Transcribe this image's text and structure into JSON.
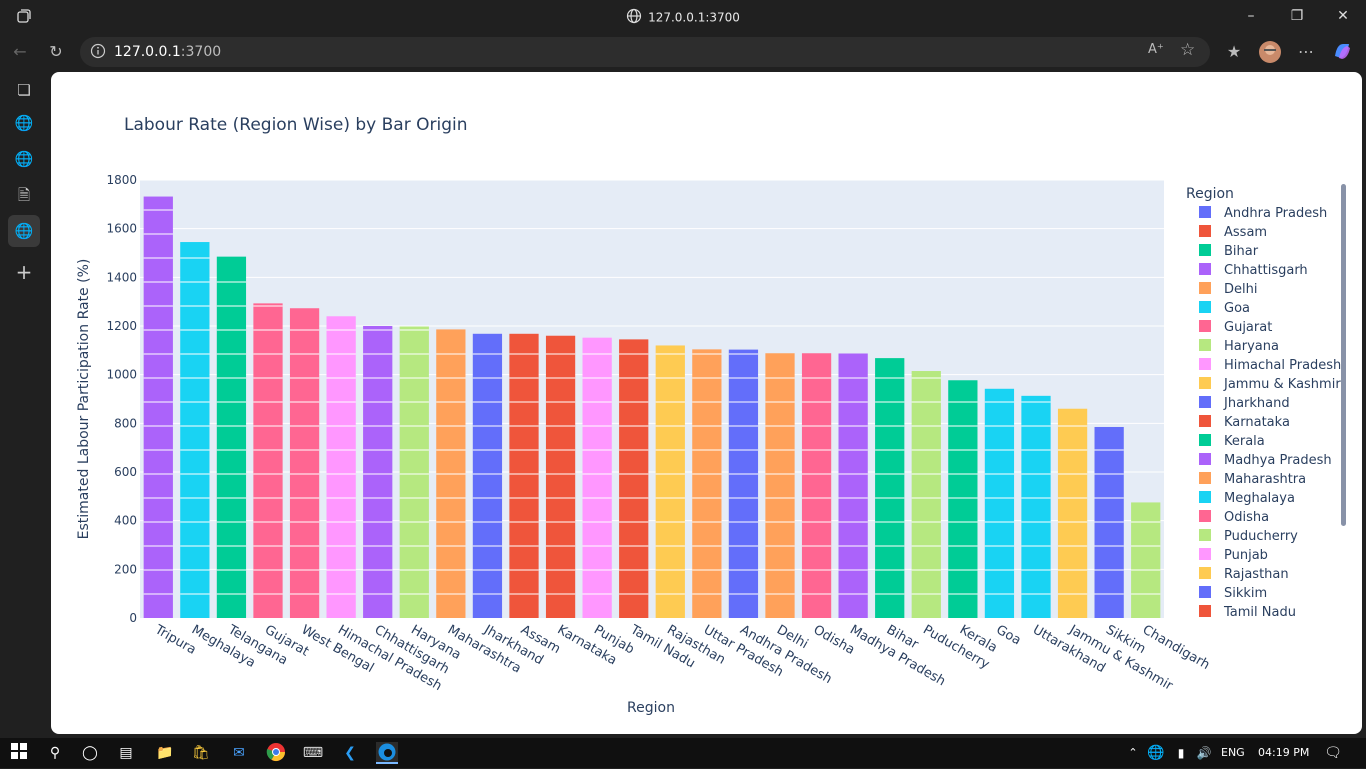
{
  "window": {
    "title": "127.0.0.1:3700"
  },
  "address_bar": {
    "host": "127.0.0.1",
    "port": ":3700"
  },
  "taskbar": {
    "lang": "ENG",
    "time": "04:19 PM"
  },
  "chart_data": {
    "type": "bar",
    "title": "Labour Rate (Region Wise) by Bar Origin",
    "xlabel": "Region",
    "ylabel": "Estimated Labour Participation Rate (%)",
    "ylim": [
      0,
      1800
    ],
    "yticks": [
      0,
      200,
      400,
      600,
      800,
      1000,
      1200,
      1400,
      1600,
      1800
    ],
    "legend_title": "Region",
    "legend_position": "right",
    "categories": [
      "Tripura",
      "Meghalaya",
      "Telangana",
      "Gujarat",
      "West Bengal",
      "Himachal Pradesh",
      "Chhattisgarh",
      "Haryana",
      "Maharashtra",
      "Jharkhand",
      "Assam",
      "Karnataka",
      "Punjab",
      "Tamil Nadu",
      "Rajasthan",
      "Uttar Pradesh",
      "Andhra Pradesh",
      "Delhi",
      "Odisha",
      "Madhya Pradesh",
      "Bihar",
      "Puducherry",
      "Kerala",
      "Goa",
      "Uttarakhand",
      "Jammu & Kashmir",
      "Sikkim",
      "Chandigarh"
    ],
    "values": [
      1732,
      1545,
      1485,
      1293,
      1273,
      1240,
      1200,
      1198,
      1186,
      1168,
      1168,
      1160,
      1152,
      1145,
      1120,
      1104,
      1103,
      1088,
      1088,
      1087,
      1068,
      1015,
      977,
      942,
      913,
      860,
      785,
      475
    ],
    "colors": [
      "#AB63FA",
      "#19D3F3",
      "#00CC96",
      "#FF6692",
      "#FF6692",
      "#FF97FF",
      "#AB63FA",
      "#B6E880",
      "#FFA15A",
      "#636EFA",
      "#EF553B",
      "#EF553B",
      "#FF97FF",
      "#EF553B",
      "#FECB52",
      "#FFA15A",
      "#636EFA",
      "#FFA15A",
      "#FF6692",
      "#AB63FA",
      "#00CC96",
      "#B6E880",
      "#00CC96",
      "#19D3F3",
      "#19D3F3",
      "#FECB52",
      "#636EFA",
      "#B6E880"
    ],
    "legend": [
      {
        "name": "Andhra Pradesh",
        "color": "#636EFA"
      },
      {
        "name": "Assam",
        "color": "#EF553B"
      },
      {
        "name": "Bihar",
        "color": "#00CC96"
      },
      {
        "name": "Chhattisgarh",
        "color": "#AB63FA"
      },
      {
        "name": "Delhi",
        "color": "#FFA15A"
      },
      {
        "name": "Goa",
        "color": "#19D3F3"
      },
      {
        "name": "Gujarat",
        "color": "#FF6692"
      },
      {
        "name": "Haryana",
        "color": "#B6E880"
      },
      {
        "name": "Himachal Pradesh",
        "color": "#FF97FF"
      },
      {
        "name": "Jammu & Kashmir",
        "color": "#FECB52"
      },
      {
        "name": "Jharkhand",
        "color": "#636EFA"
      },
      {
        "name": "Karnataka",
        "color": "#EF553B"
      },
      {
        "name": "Kerala",
        "color": "#00CC96"
      },
      {
        "name": "Madhya Pradesh",
        "color": "#AB63FA"
      },
      {
        "name": "Maharashtra",
        "color": "#FFA15A"
      },
      {
        "name": "Meghalaya",
        "color": "#19D3F3"
      },
      {
        "name": "Odisha",
        "color": "#FF6692"
      },
      {
        "name": "Puducherry",
        "color": "#B6E880"
      },
      {
        "name": "Punjab",
        "color": "#FF97FF"
      },
      {
        "name": "Rajasthan",
        "color": "#FECB52"
      },
      {
        "name": "Sikkim",
        "color": "#636EFA"
      },
      {
        "name": "Tamil Nadu",
        "color": "#EF553B"
      }
    ]
  }
}
